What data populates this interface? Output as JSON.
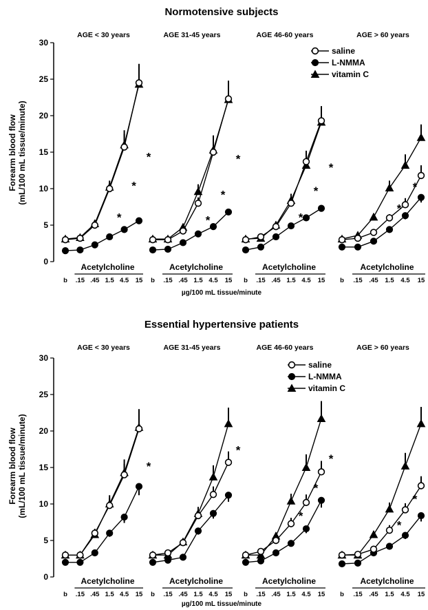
{
  "figure": {
    "x_unit_label": "µg/100 mL tissue/minute",
    "y_label_line1": "Forearm blood flow",
    "y_label_line2": "(mL/100 mL tissue/minute)",
    "drug_label": "Acetylcholine",
    "yticks": [
      "0",
      "5",
      "10",
      "15",
      "20",
      "25",
      "30"
    ],
    "legend": [
      "saline",
      "L-NMMA",
      "vitamin C"
    ]
  },
  "chart_data": [
    {
      "type": "line",
      "title": "Normotensive subjects",
      "xlabel": "µg/100 mL tissue/minute",
      "ylabel": "Forearm blood flow (mL/100 mL tissue/minute)",
      "ylim": [
        0,
        30
      ],
      "legend_position": "top-right",
      "panels": [
        {
          "title": "AGE < 30 years",
          "categories": [
            "b",
            ".15",
            ".45",
            "1.5",
            "4.5",
            "15"
          ],
          "series": [
            {
              "name": "saline",
              "marker": "open-circle",
              "values": [
                3,
                3.2,
                5,
                10,
                15.7,
                24.5
              ],
              "err": [
                0.3,
                0.3,
                0.5,
                0.8,
                1.8,
                2.5
              ]
            },
            {
              "name": "L-NMMA",
              "marker": "filled-circle",
              "values": [
                1.5,
                1.6,
                2.3,
                3.4,
                4.4,
                5.6
              ],
              "err": [
                0.2,
                0.2,
                0.2,
                0.3,
                0.3,
                0.3
              ]
            },
            {
              "name": "vitamin C",
              "marker": "filled-triangle",
              "values": [
                3.1,
                3.3,
                5.2,
                10.2,
                16,
                24.3
              ],
              "err": [
                0.3,
                0.3,
                0.5,
                0.9,
                2,
                2.8
              ]
            }
          ],
          "significance": [
            {
              "x": "1.5",
              "y": 6.2
            },
            {
              "x": "4.5",
              "y": 10.5
            },
            {
              "x": "15",
              "y": 14.5
            }
          ]
        },
        {
          "title": "AGE 31-45 years",
          "categories": [
            "b",
            ".15",
            ".45",
            "1.5",
            "4.5",
            "15"
          ],
          "series": [
            {
              "name": "saline",
              "marker": "open-circle",
              "values": [
                3,
                3,
                4.2,
                8,
                15,
                22.3
              ],
              "err": [
                0.3,
                0.3,
                0.5,
                0.8,
                1.8,
                2.5
              ]
            },
            {
              "name": "L-NMMA",
              "marker": "filled-circle",
              "values": [
                1.6,
                1.7,
                2.6,
                3.8,
                4.8,
                6.8
              ],
              "err": [
                0.2,
                0.2,
                0.2,
                0.3,
                0.3,
                0.4
              ]
            },
            {
              "name": "vitamin C",
              "marker": "filled-triangle",
              "values": [
                3.1,
                3.1,
                4.7,
                9.6,
                15.3,
                22.2
              ],
              "err": [
                0.3,
                0.3,
                0.5,
                1,
                2,
                2.5
              ]
            }
          ],
          "significance": [
            {
              "x": "1.5",
              "y": 5.8
            },
            {
              "x": "4.5",
              "y": 9.3
            },
            {
              "x": "15",
              "y": 14.2
            }
          ]
        },
        {
          "title": "AGE 46-60 years",
          "categories": [
            "b",
            ".15",
            ".45",
            "1.5",
            "4.5",
            "15"
          ],
          "series": [
            {
              "name": "saline",
              "marker": "open-circle",
              "values": [
                3,
                3.4,
                4.8,
                8,
                13.7,
                19.3
              ],
              "err": [
                0.3,
                0.4,
                0.5,
                0.8,
                1.5,
                2
              ]
            },
            {
              "name": "L-NMMA",
              "marker": "filled-circle",
              "values": [
                1.6,
                2,
                3.4,
                4.9,
                6,
                7.3
              ],
              "err": [
                0.2,
                0.2,
                0.3,
                0.3,
                0.4,
                0.4
              ]
            },
            {
              "name": "vitamin C",
              "marker": "filled-triangle",
              "values": [
                3.1,
                3.2,
                5,
                8.4,
                13.2,
                19.1
              ],
              "err": [
                0.3,
                0.4,
                0.5,
                0.9,
                1.6,
                2.2
              ]
            }
          ],
          "significance": [
            {
              "x": "1.5",
              "y": 6.2
            },
            {
              "x": "4.5",
              "y": 9.8
            },
            {
              "x": "15",
              "y": 13
            }
          ]
        },
        {
          "title": "AGE > 60 years",
          "categories": [
            "b",
            ".15",
            ".45",
            "1.5",
            "4.5",
            "15"
          ],
          "series": [
            {
              "name": "saline",
              "marker": "open-circle",
              "values": [
                3,
                3.2,
                4,
                6,
                7.8,
                11.8
              ],
              "err": [
                0.3,
                0.3,
                0.4,
                0.5,
                0.9,
                1.4
              ]
            },
            {
              "name": "L-NMMA",
              "marker": "filled-circle",
              "values": [
                2,
                2,
                2.8,
                4.4,
                6.3,
                8.8
              ],
              "err": [
                0.2,
                0.2,
                0.3,
                0.3,
                0.5,
                0.7
              ]
            },
            {
              "name": "vitamin C",
              "marker": "filled-triangle",
              "values": [
                3.1,
                3.6,
                6.1,
                10.1,
                13.2,
                17
              ],
              "err": [
                0.3,
                0.3,
                0.5,
                1,
                1.5,
                1.8
              ]
            }
          ],
          "significance": [
            {
              "x": "1.5",
              "y": 7.4
            },
            {
              "x": "4.5",
              "y": 10.4
            },
            {
              "x": "15",
              "y": 14
            }
          ]
        }
      ]
    },
    {
      "type": "line",
      "title": "Essential hypertensive patients",
      "xlabel": "µg/100 mL tissue/minute",
      "ylabel": "Forearm blood flow (mL/100 mL tissue/minute)",
      "ylim": [
        0,
        30
      ],
      "legend_position": "top-right",
      "panels": [
        {
          "title": "AGE < 30 years",
          "categories": [
            "b",
            ".15",
            ".45",
            "1.5",
            "4.5",
            "15"
          ],
          "series": [
            {
              "name": "saline",
              "marker": "open-circle",
              "values": [
                3,
                3,
                6,
                9.8,
                14,
                20.3
              ],
              "err": [
                0.3,
                0.3,
                0.6,
                1,
                1.5,
                2.5
              ]
            },
            {
              "name": "L-NMMA",
              "marker": "filled-circle",
              "values": [
                2,
                2,
                3.3,
                6,
                8.2,
                12.4
              ],
              "err": [
                0.2,
                0.2,
                0.3,
                0.5,
                0.8,
                1.2
              ]
            },
            {
              "name": "vitamin C",
              "marker": "filled-triangle",
              "values": [
                3,
                3,
                5.8,
                10,
                14.3,
                20.5
              ],
              "err": [
                0.3,
                0.3,
                0.6,
                1.2,
                1.8,
                2.5
              ]
            }
          ],
          "significance": [
            {
              "x": "15",
              "y": 15.3
            }
          ]
        },
        {
          "title": "AGE 31-45 years",
          "categories": [
            "b",
            ".15",
            ".45",
            "1.5",
            "4.5",
            "15"
          ],
          "series": [
            {
              "name": "saline",
              "marker": "open-circle",
              "values": [
                3,
                3.3,
                4.7,
                8.4,
                11.3,
                15.7
              ],
              "err": [
                0.3,
                0.3,
                0.5,
                0.9,
                1.1,
                1.5
              ]
            },
            {
              "name": "L-NMMA",
              "marker": "filled-circle",
              "values": [
                2,
                2.3,
                2.7,
                6.3,
                8.7,
                11.2
              ],
              "err": [
                0.2,
                0.2,
                0.3,
                0.5,
                0.7,
                0.9
              ]
            },
            {
              "name": "vitamin C",
              "marker": "filled-triangle",
              "values": [
                3,
                3,
                4.8,
                8.7,
                13.7,
                21
              ],
              "err": [
                0.3,
                0.3,
                0.5,
                0.9,
                1.6,
                2.2
              ]
            }
          ],
          "significance": [
            {
              "x": "15",
              "y": 17.5
            }
          ]
        },
        {
          "title": "AGE 46-60 years",
          "categories": [
            "b",
            ".15",
            ".45",
            "1.5",
            "4.5",
            "15"
          ],
          "series": [
            {
              "name": "saline",
              "marker": "open-circle",
              "values": [
                3,
                3.5,
                5,
                7.3,
                10.2,
                14.4
              ],
              "err": [
                0.3,
                0.3,
                0.5,
                0.8,
                1.1,
                1.5
              ]
            },
            {
              "name": "L-NMMA",
              "marker": "filled-circle",
              "values": [
                2,
                2.2,
                3.3,
                4.6,
                6.6,
                10.5
              ],
              "err": [
                0.2,
                0.2,
                0.3,
                0.4,
                0.6,
                1
              ]
            },
            {
              "name": "vitamin C",
              "marker": "filled-triangle",
              "values": [
                3,
                3,
                5.6,
                10.4,
                15,
                21.7
              ],
              "err": [
                0.3,
                0.3,
                0.5,
                1,
                1.8,
                2.4
              ]
            }
          ],
          "significance": [
            {
              "x": "1.5",
              "y": 8.5
            },
            {
              "x": "4.5",
              "y": 12.3
            },
            {
              "x": "15",
              "y": 16.3
            }
          ]
        },
        {
          "title": "AGE > 60 years",
          "categories": [
            "b",
            ".15",
            ".45",
            "1.5",
            "4.5",
            "15"
          ],
          "series": [
            {
              "name": "saline",
              "marker": "open-circle",
              "values": [
                3,
                3.1,
                3.8,
                6.4,
                9.2,
                12.5
              ],
              "err": [
                0.3,
                0.3,
                0.4,
                0.7,
                0.9,
                1.3
              ]
            },
            {
              "name": "L-NMMA",
              "marker": "filled-circle",
              "values": [
                1.8,
                1.9,
                3.3,
                4.2,
                5.7,
                8.4
              ],
              "err": [
                0.2,
                0.2,
                0.3,
                0.4,
                0.5,
                0.8
              ]
            },
            {
              "name": "vitamin C",
              "marker": "filled-triangle",
              "values": [
                3,
                3,
                5.8,
                9.3,
                15.2,
                21
              ],
              "err": [
                0.3,
                0.3,
                0.5,
                0.9,
                1.8,
                2.3
              ]
            }
          ],
          "significance": [
            {
              "x": "1.5",
              "y": 7.2
            },
            {
              "x": "4.5",
              "y": 10.8
            },
            {
              "x": "15",
              "y": 14.5
            }
          ]
        }
      ]
    }
  ]
}
